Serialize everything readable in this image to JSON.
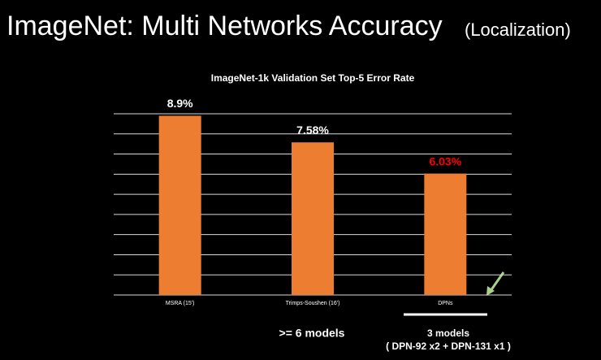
{
  "chart_data": {
    "type": "bar",
    "slide_title": "ImageNet: Multi Networks Accuracy",
    "slide_subtitle": "(Localization)",
    "title": "ImageNet-1k Validation Set Top-5 Error Rate",
    "categories": [
      "MSRA (15')",
      "Trimps-Soushen (16')",
      "DPNs"
    ],
    "values": [
      8.9,
      7.58,
      6.03
    ],
    "value_labels": [
      "8.9%",
      "7.58%",
      "6.03%"
    ],
    "label_colors": [
      "#ffffff",
      "#ffffff",
      "#ff0000"
    ],
    "color": "#ed7d31",
    "ylim": [
      0,
      9
    ],
    "yticks": [
      0,
      1,
      2,
      3,
      4,
      5,
      6,
      7,
      8,
      9
    ],
    "grid": true,
    "annotations": [
      ">= 6 models",
      "3 models",
      "( DPN-92 x2 + DPN-131 x1 )"
    ]
  }
}
